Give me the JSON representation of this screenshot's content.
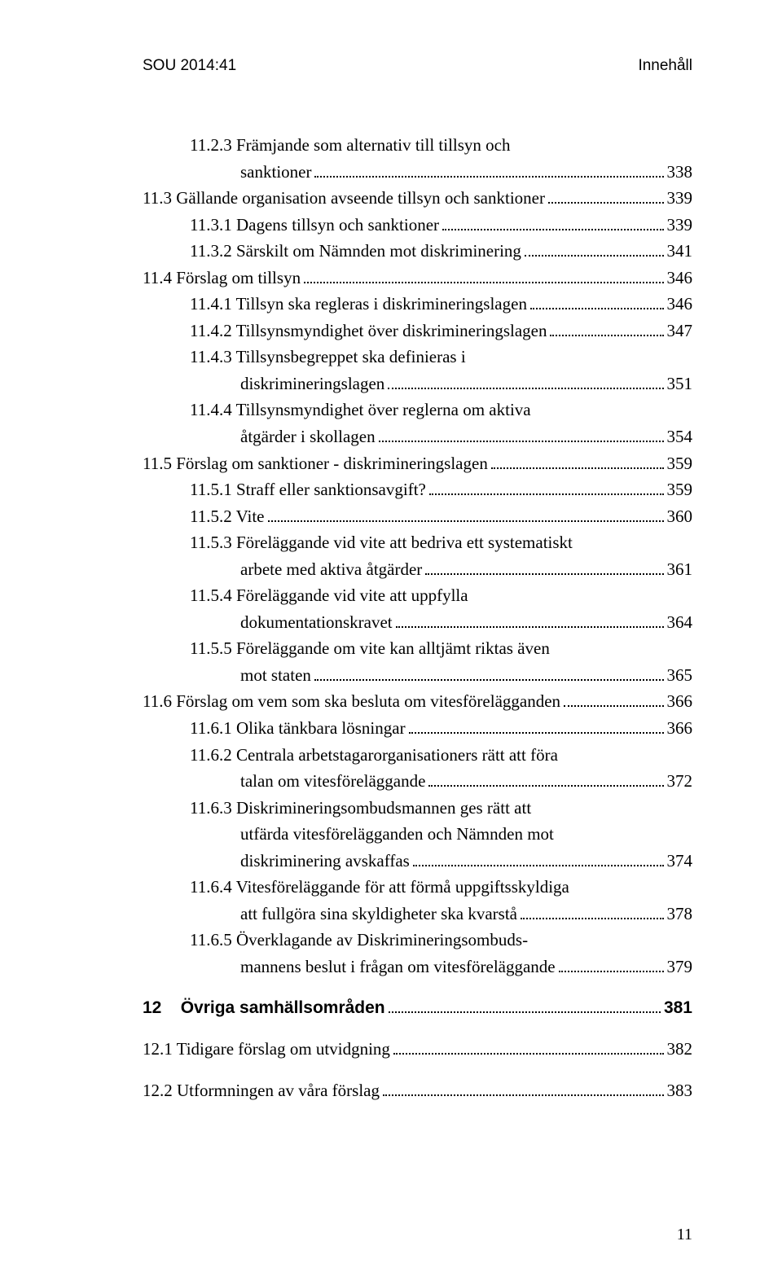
{
  "header": {
    "left": "SOU 2014:41",
    "right": "Innehåll"
  },
  "footer_page": "11",
  "groups": [
    {
      "lines": [
        {
          "text": "11.2.3 Främjande som alternativ till tillsyn och",
          "indent": "hang",
          "page": "",
          "noleader": true
        },
        {
          "text": "sanktioner",
          "indent": "hang3",
          "page": "338"
        },
        {
          "text": "11.3 Gällande organisation avseende tillsyn och sanktioner",
          "indent": "lvl2",
          "page": "339"
        },
        {
          "text": "11.3.1 Dagens tillsyn och sanktioner",
          "indent": "hang",
          "page": "339"
        },
        {
          "text": "11.3.2 Särskilt om Nämnden mot diskriminering",
          "indent": "hang",
          "page": "341"
        },
        {
          "text": "11.4 Förslag om tillsyn",
          "indent": "lvl2",
          "page": "346"
        },
        {
          "text": "11.4.1 Tillsyn ska regleras i diskrimineringslagen",
          "indent": "hang",
          "page": "346"
        },
        {
          "text": "11.4.2 Tillsynsmyndighet över diskrimineringslagen",
          "indent": "hang",
          "page": "347"
        },
        {
          "text": "11.4.3 Tillsynsbegreppet ska definieras i",
          "indent": "hang",
          "page": "",
          "noleader": true
        },
        {
          "text": "diskrimineringslagen",
          "indent": "hang3",
          "page": "351"
        },
        {
          "text": "11.4.4 Tillsynsmyndighet över reglerna om aktiva",
          "indent": "hang",
          "page": "",
          "noleader": true
        },
        {
          "text": "åtgärder i skollagen",
          "indent": "hang3",
          "page": "354"
        },
        {
          "text": "11.5 Förslag om sanktioner - diskrimineringslagen",
          "indent": "lvl2",
          "page": "359"
        },
        {
          "text": "11.5.1 Straff eller sanktionsavgift?",
          "indent": "hang",
          "page": "359"
        },
        {
          "text": "11.5.2 Vite",
          "indent": "hang",
          "page": "360"
        },
        {
          "text": "11.5.3 Föreläggande vid vite att bedriva ett systematiskt",
          "indent": "hang",
          "page": "",
          "noleader": true
        },
        {
          "text": "arbete med aktiva åtgärder",
          "indent": "hang3",
          "page": "361"
        },
        {
          "text": "11.5.4 Föreläggande vid vite att uppfylla",
          "indent": "hang",
          "page": "",
          "noleader": true
        },
        {
          "text": "dokumentationskravet",
          "indent": "hang3",
          "page": "364"
        },
        {
          "text": "11.5.5 Föreläggande om vite kan alltjämt riktas även",
          "indent": "hang",
          "page": "",
          "noleader": true
        },
        {
          "text": "mot staten",
          "indent": "hang3",
          "page": "365"
        },
        {
          "text": "11.6 Förslag om vem som ska besluta om vitesförelägganden",
          "indent": "lvl2",
          "page": "366"
        },
        {
          "text": "11.6.1 Olika tänkbara lösningar",
          "indent": "hang",
          "page": "366"
        },
        {
          "text": "11.6.2 Centrala arbetstagarorganisationers rätt att föra",
          "indent": "hang",
          "page": "",
          "noleader": true
        },
        {
          "text": "talan om vitesföreläggande",
          "indent": "hang3",
          "page": "372"
        },
        {
          "text": "11.6.3 Diskrimineringsombudsmannen ges rätt att",
          "indent": "hang",
          "page": "",
          "noleader": true
        },
        {
          "text": "utfärda vitesförelägganden och Nämnden mot",
          "indent": "hang3",
          "page": "",
          "noleader": true
        },
        {
          "text": "diskriminering avskaffas",
          "indent": "hang3",
          "page": "374"
        },
        {
          "text": "11.6.4 Vitesföreläggande för att förmå uppgiftsskyldiga",
          "indent": "hang",
          "page": "",
          "noleader": true
        },
        {
          "text": "att fullgöra sina skyldigheter ska kvarstå",
          "indent": "hang3",
          "page": "378"
        },
        {
          "text": "11.6.5 Överklagande av Diskrimineringsombuds-",
          "indent": "hang",
          "page": "",
          "noleader": true
        },
        {
          "text": "mannens beslut i frågan om vitesföreläggande",
          "indent": "hang3",
          "page": "379"
        }
      ]
    },
    {
      "lines": [
        {
          "text": "12    Övriga samhällsområden",
          "indent": "lvl2",
          "page": " 381",
          "bold": true
        }
      ]
    },
    {
      "lines": [
        {
          "text": "12.1 Tidigare förslag om utvidgning",
          "indent": "lvl2",
          "page": "382"
        }
      ]
    },
    {
      "lines": [
        {
          "text": "12.2 Utformningen av våra förslag",
          "indent": "lvl2",
          "page": "383"
        }
      ]
    }
  ]
}
